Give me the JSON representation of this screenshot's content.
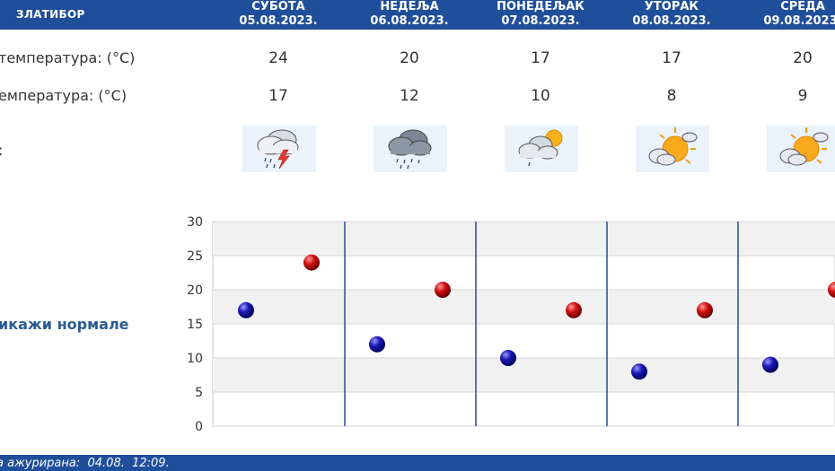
{
  "header": {
    "station": "ЗЛАТИБОР",
    "days": [
      {
        "name": "СУБОТА",
        "date": "05.08.2023."
      },
      {
        "name": "НЕДЕЉА",
        "date": "06.08.2023."
      },
      {
        "name": "ПОНЕДЕЉАК",
        "date": "07.08.2023."
      },
      {
        "name": "УТОРАК",
        "date": "08.08.2023."
      },
      {
        "name": "СРЕДА",
        "date": "09.08.2023."
      }
    ]
  },
  "rows": {
    "max_label": "температура: (°C)",
    "min_label": "емпература: (°C)",
    "icon_label": ":"
  },
  "max_temps": [
    "24",
    "20",
    "17",
    "17",
    "20"
  ],
  "min_temps": [
    "17",
    "12",
    "10",
    "8",
    "9"
  ],
  "weather_icons": [
    "storm-icon",
    "rain-icon",
    "partly-cloudy-shower-icon",
    "sun-cloud-icon",
    "sun-cloud-icon"
  ],
  "normals_link": "икажи нормале",
  "footer": {
    "text": "а ажурирана:  04.08.  12:09."
  },
  "colors": {
    "header": "#1f4f9a",
    "max_dot": "#cc0000",
    "min_dot": "#1a1aa8",
    "separator": "#1f4f9a"
  },
  "chart_data": {
    "type": "scatter",
    "title": "",
    "xlabel": "",
    "ylabel": "",
    "ylim": [
      0,
      30
    ],
    "yticks": [
      0,
      5,
      10,
      15,
      20,
      25,
      30
    ],
    "grid": true,
    "categories": [
      "05.08.2023.",
      "06.08.2023.",
      "07.08.2023.",
      "08.08.2023.",
      "09.08.2023."
    ],
    "series": [
      {
        "values": [
          24,
          20,
          17,
          17,
          20
        ],
        "color": "#cc0000"
      },
      {
        "values": [
          17,
          12,
          10,
          8,
          9
        ],
        "color": "#1a1aa8"
      }
    ]
  }
}
